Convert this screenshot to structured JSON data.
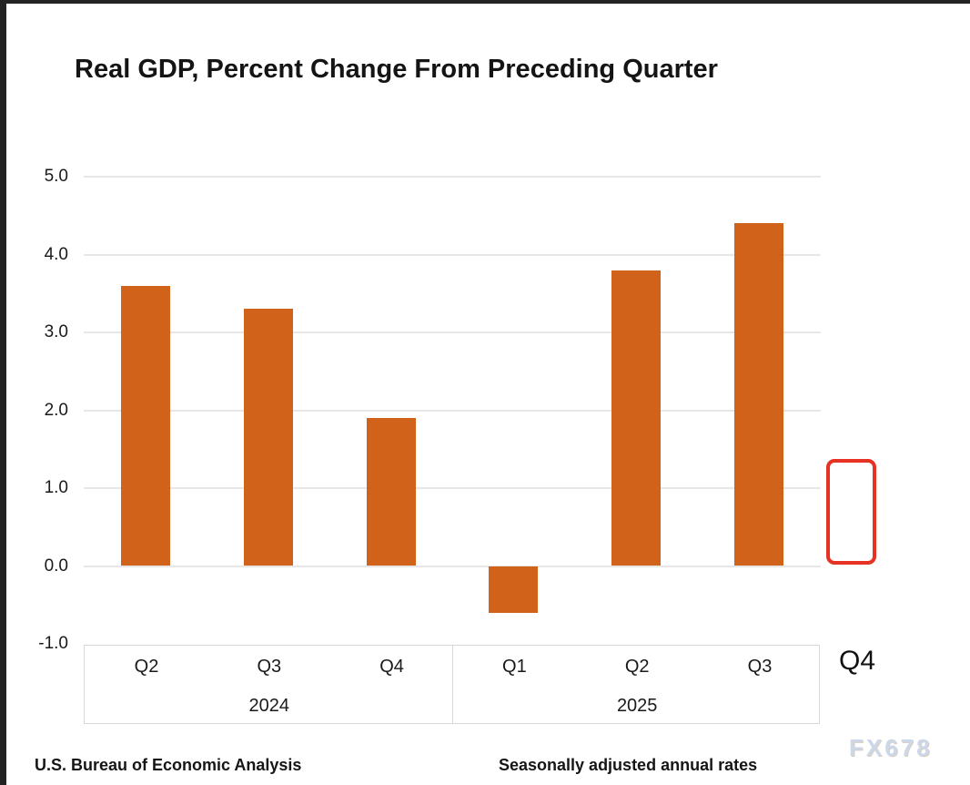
{
  "chart_data": {
    "type": "bar",
    "title": "Real GDP, Percent Change From Preceding Quarter",
    "categories": [
      "Q2 2024",
      "Q3 2024",
      "Q4 2024",
      "Q1 2025",
      "Q2 2025",
      "Q3 2025"
    ],
    "quarter_labels": [
      "Q2",
      "Q3",
      "Q4",
      "Q1",
      "Q2",
      "Q3"
    ],
    "values": [
      3.6,
      3.3,
      1.9,
      -0.6,
      3.8,
      4.4
    ],
    "year_groups": [
      {
        "label": "2024",
        "span": [
          0,
          2
        ]
      },
      {
        "label": "2025",
        "span": [
          3,
          5
        ]
      }
    ],
    "placeholder": {
      "label": "Q4",
      "value": null
    },
    "ylim": [
      -1.0,
      5.0
    ],
    "ytick_labels": [
      "5.0",
      "4.0",
      "3.0",
      "2.0",
      "1.0",
      "0.0",
      "-1.0"
    ],
    "grid": true,
    "legend": false,
    "bar_color": "#d1621a",
    "placeholder_color": "#e63223"
  },
  "footnotes": {
    "source": "U.S. Bureau of Economic Analysis",
    "note": "Seasonally adjusted annual rates"
  },
  "watermark": "FX678"
}
